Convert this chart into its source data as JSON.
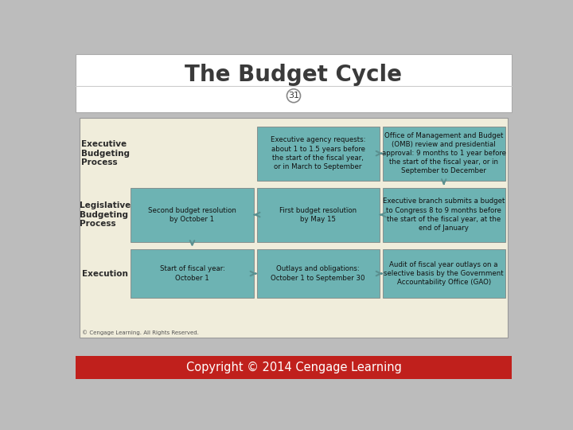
{
  "title": "The Budget Cycle",
  "page_number": "31",
  "bg_color": "#f0eddb",
  "outer_bg": "#bcbcbc",
  "box_color": "#6db3b3",
  "label_color": "#2a2a2a",
  "footer_red": "#c0201c",
  "footer_text": "Copyright © 2014 Cengage Learning",
  "copyright_small": "© Cengage Learning. All Rights Reserved.",
  "title_color": "#3a3a3a",
  "rows": [
    {
      "label": "Executive\nBudgeting\nProcess",
      "boxes": [
        {
          "text": "",
          "col": 0,
          "empty": true
        },
        {
          "text": "Executive agency requests:\nabout 1 to 1.5 years before\nthe start of the fiscal year,\nor in March to September",
          "col": 1,
          "empty": false
        },
        {
          "text": "Office of Management and Budget\n(OMB) review and presidential\napproval: 9 months to 1 year before\nthe start of the fiscal year, or in\nSeptember to December",
          "col": 2,
          "empty": false
        }
      ]
    },
    {
      "label": "Legislative\nBudgeting\nProcess",
      "boxes": [
        {
          "text": "Second budget resolution\nby October 1",
          "col": 0,
          "empty": false
        },
        {
          "text": "First budget resolutïon\nby May 15",
          "col": 1,
          "empty": false
        },
        {
          "text": "Executive branch submits a budget\nto Congress 8 to 9 months before\nthe start of the fiscal year, at the\nend of January",
          "col": 2,
          "empty": false
        }
      ]
    },
    {
      "label": "Execution",
      "boxes": [
        {
          "text": "Start of fiscal year:\nOctober 1",
          "col": 0,
          "empty": false
        },
        {
          "text": "Outlays and obligations:\nOctober 1 to September 30",
          "col": 1,
          "empty": false
        },
        {
          "text": "Audit of fiscal year outlays on a\nselective basis by the Government\nAccountability Office (GAO)",
          "col": 2,
          "empty": false
        }
      ]
    }
  ]
}
